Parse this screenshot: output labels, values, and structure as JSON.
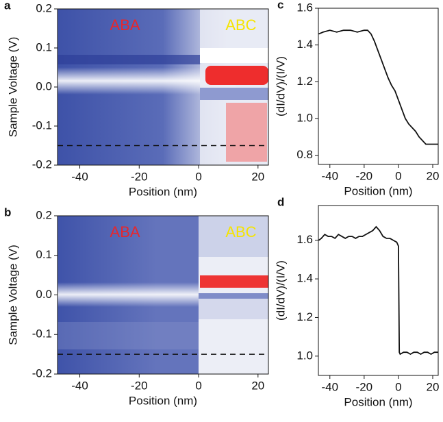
{
  "chart_data": [
    {
      "type": "heatmap",
      "panel_label": "a",
      "xlabel": "Position (nm)",
      "ylabel": "Sample Voltage (V)",
      "xlim": [
        -47.5,
        23.5
      ],
      "xticks": [
        -40,
        -20,
        0,
        20
      ],
      "ylim": [
        -0.2,
        0.2
      ],
      "yticks": [
        0.2,
        0.1,
        {
          "value": 0,
          "label": "0.0"
        },
        -0.1,
        -0.2
      ],
      "hline": -0.15,
      "annotations": [
        {
          "text": "ABA",
          "color": "#e8262b"
        },
        {
          "text": "ABC",
          "color": "#f5e400"
        }
      ]
    },
    {
      "type": "heatmap",
      "panel_label": "b",
      "xlabel": "Position (nm)",
      "ylabel": "Sample Voltage (V)",
      "xlim": [
        -47.5,
        23.5
      ],
      "xticks": [
        -40,
        -20,
        0,
        20
      ],
      "ylim": [
        -0.2,
        0.2
      ],
      "yticks": [
        0.2,
        0.1,
        {
          "value": 0,
          "label": "0.0"
        },
        -0.1,
        -0.2
      ],
      "hline": -0.15,
      "annotations": [
        {
          "text": "ABA",
          "color": "#e8262b"
        },
        {
          "text": "ABC",
          "color": "#f5e400"
        }
      ]
    },
    {
      "type": "line",
      "panel_label": "c",
      "xlabel": "Position (nm)",
      "ylabel": "(dI/dV)/(I/V)",
      "xlim": [
        -46.7,
        23.2
      ],
      "xticks": [
        -40,
        -20,
        0,
        20
      ],
      "ylim": [
        0.75,
        1.6
      ],
      "yticks": [
        1.6,
        1.4,
        1.2,
        {
          "value": 1,
          "label": "1.0"
        },
        0.8
      ],
      "color": "#111111",
      "x": [
        -46.5,
        -44,
        -40,
        -36,
        -32,
        -28,
        -24,
        -20,
        -18,
        -16,
        -14,
        -12,
        -10,
        -8,
        -6,
        -4,
        -2,
        0,
        2,
        4,
        6,
        8,
        10,
        12,
        14,
        16,
        18,
        20,
        23
      ],
      "values": [
        1.46,
        1.47,
        1.48,
        1.47,
        1.48,
        1.48,
        1.47,
        1.48,
        1.48,
        1.46,
        1.42,
        1.37,
        1.32,
        1.27,
        1.22,
        1.18,
        1.15,
        1.1,
        1.05,
        1.0,
        0.97,
        0.95,
        0.93,
        0.9,
        0.88,
        0.86,
        0.86,
        0.86,
        0.86
      ]
    },
    {
      "type": "line",
      "panel_label": "d",
      "xlabel": "Position (nm)",
      "ylabel": "(dI/dV)/(I/V)",
      "xlim": [
        -46.7,
        23.2
      ],
      "xticks": [
        -40,
        -20,
        0,
        20
      ],
      "ylim": [
        0.9,
        1.78
      ],
      "yticks": [
        1.6,
        1.4,
        1.2,
        {
          "value": 1,
          "label": "1.0"
        }
      ],
      "color": "#111111",
      "x": [
        -46.5,
        -45,
        -43,
        -41,
        -39,
        -37,
        -35,
        -33,
        -31,
        -29,
        -27,
        -25,
        -23,
        -21,
        -19,
        -17,
        -15,
        -13,
        -11,
        -9,
        -7,
        -5,
        -3,
        -1,
        0,
        0.5,
        1,
        3,
        5,
        7,
        9,
        11,
        13,
        15,
        17,
        19,
        21,
        23
      ],
      "values": [
        1.6,
        1.61,
        1.63,
        1.62,
        1.62,
        1.61,
        1.63,
        1.62,
        1.61,
        1.62,
        1.62,
        1.61,
        1.62,
        1.62,
        1.63,
        1.64,
        1.65,
        1.67,
        1.65,
        1.62,
        1.61,
        1.61,
        1.6,
        1.59,
        1.57,
        1.02,
        1.01,
        1.02,
        1.02,
        1.01,
        1.02,
        1.02,
        1.01,
        1.02,
        1.02,
        1.01,
        1.02,
        1.02
      ]
    }
  ]
}
